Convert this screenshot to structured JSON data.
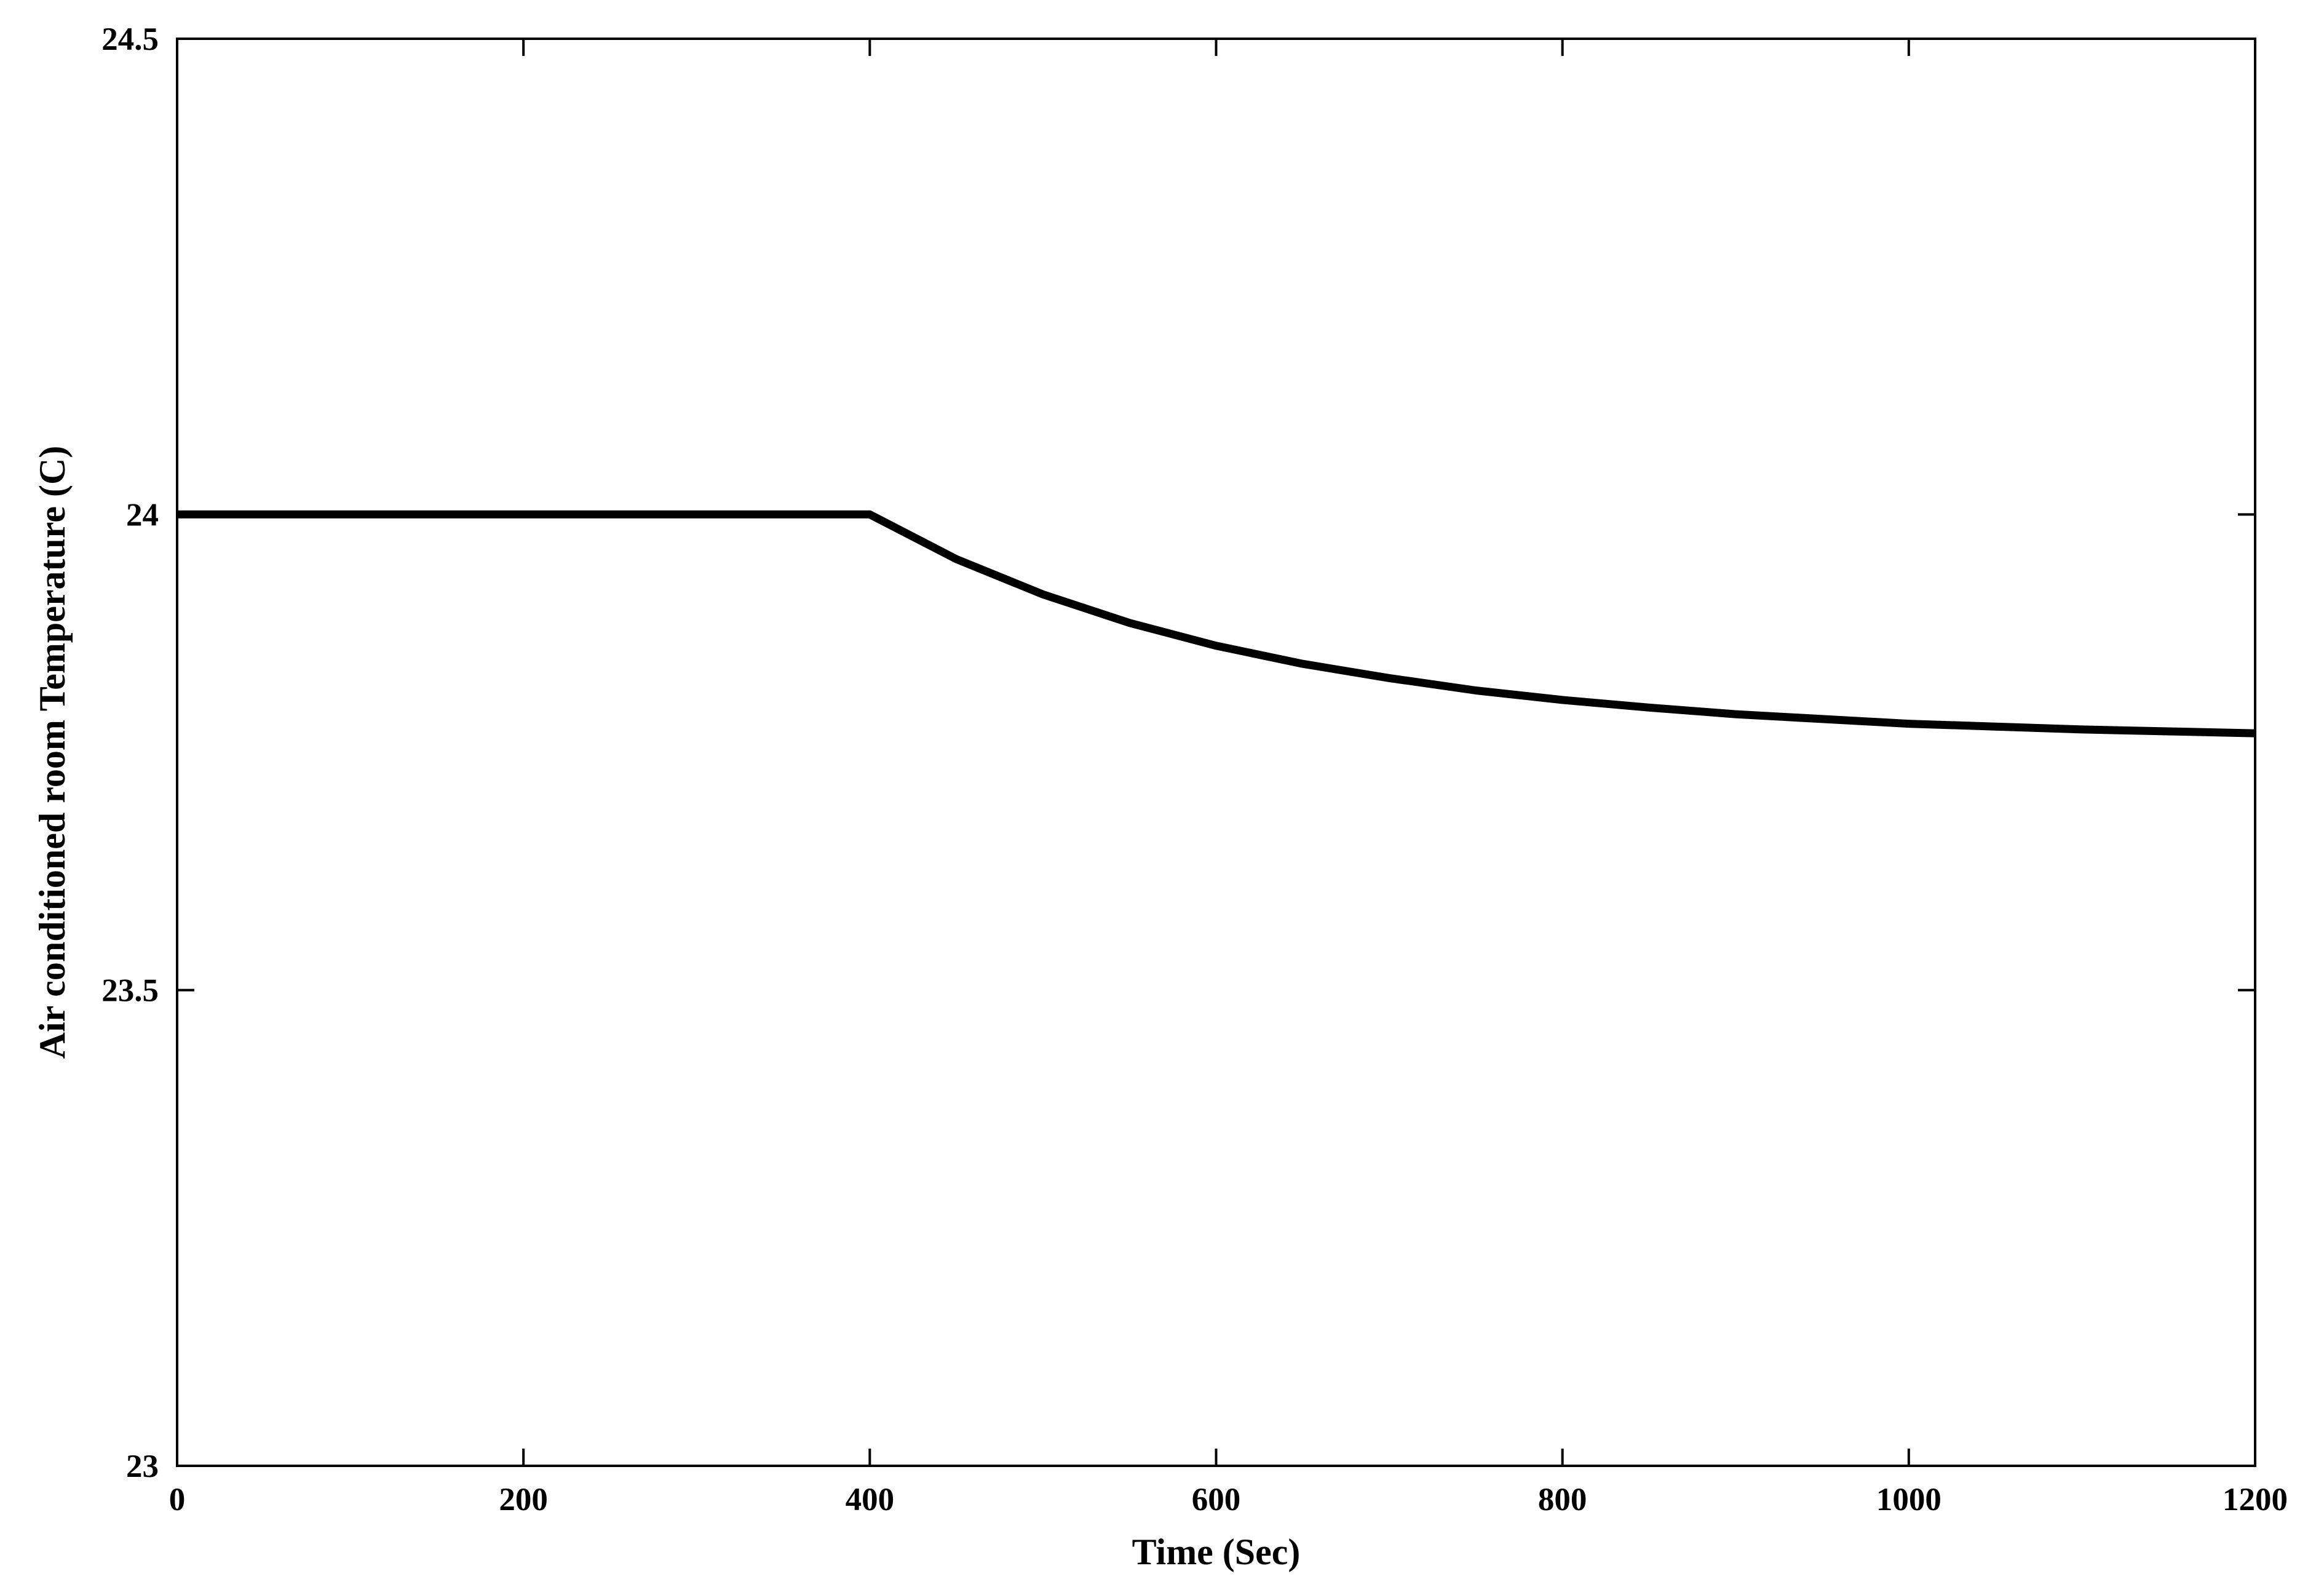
{
  "chart_data": {
    "type": "line",
    "title": "",
    "xlabel": "Time (Sec)",
    "ylabel": "Air conditioned room Temperature (C)",
    "xlim": [
      0,
      1200
    ],
    "ylim": [
      23,
      24.5
    ],
    "xticks": [
      0,
      200,
      400,
      600,
      800,
      1000,
      1200
    ],
    "xtick_labels": [
      "0",
      "200",
      "400",
      "600",
      "800",
      "1000",
      "1200"
    ],
    "yticks": [
      23,
      23.5,
      24,
      24.5
    ],
    "ytick_labels": [
      "23",
      "23.5",
      "24",
      "24.5"
    ],
    "grid": false,
    "legend": "none",
    "series": [
      {
        "color": "#000000",
        "x": [
          0,
          100,
          200,
          300,
          400,
          450,
          500,
          550,
          600,
          650,
          700,
          750,
          800,
          850,
          900,
          950,
          1000,
          1050,
          1100,
          1150,
          1200
        ],
        "y": [
          24.0,
          24.0,
          24.0,
          24.0,
          24.0,
          23.953,
          23.916,
          23.886,
          23.862,
          23.843,
          23.828,
          23.815,
          23.805,
          23.797,
          23.79,
          23.785,
          23.78,
          23.777,
          23.774,
          23.772,
          23.77
        ]
      }
    ]
  }
}
